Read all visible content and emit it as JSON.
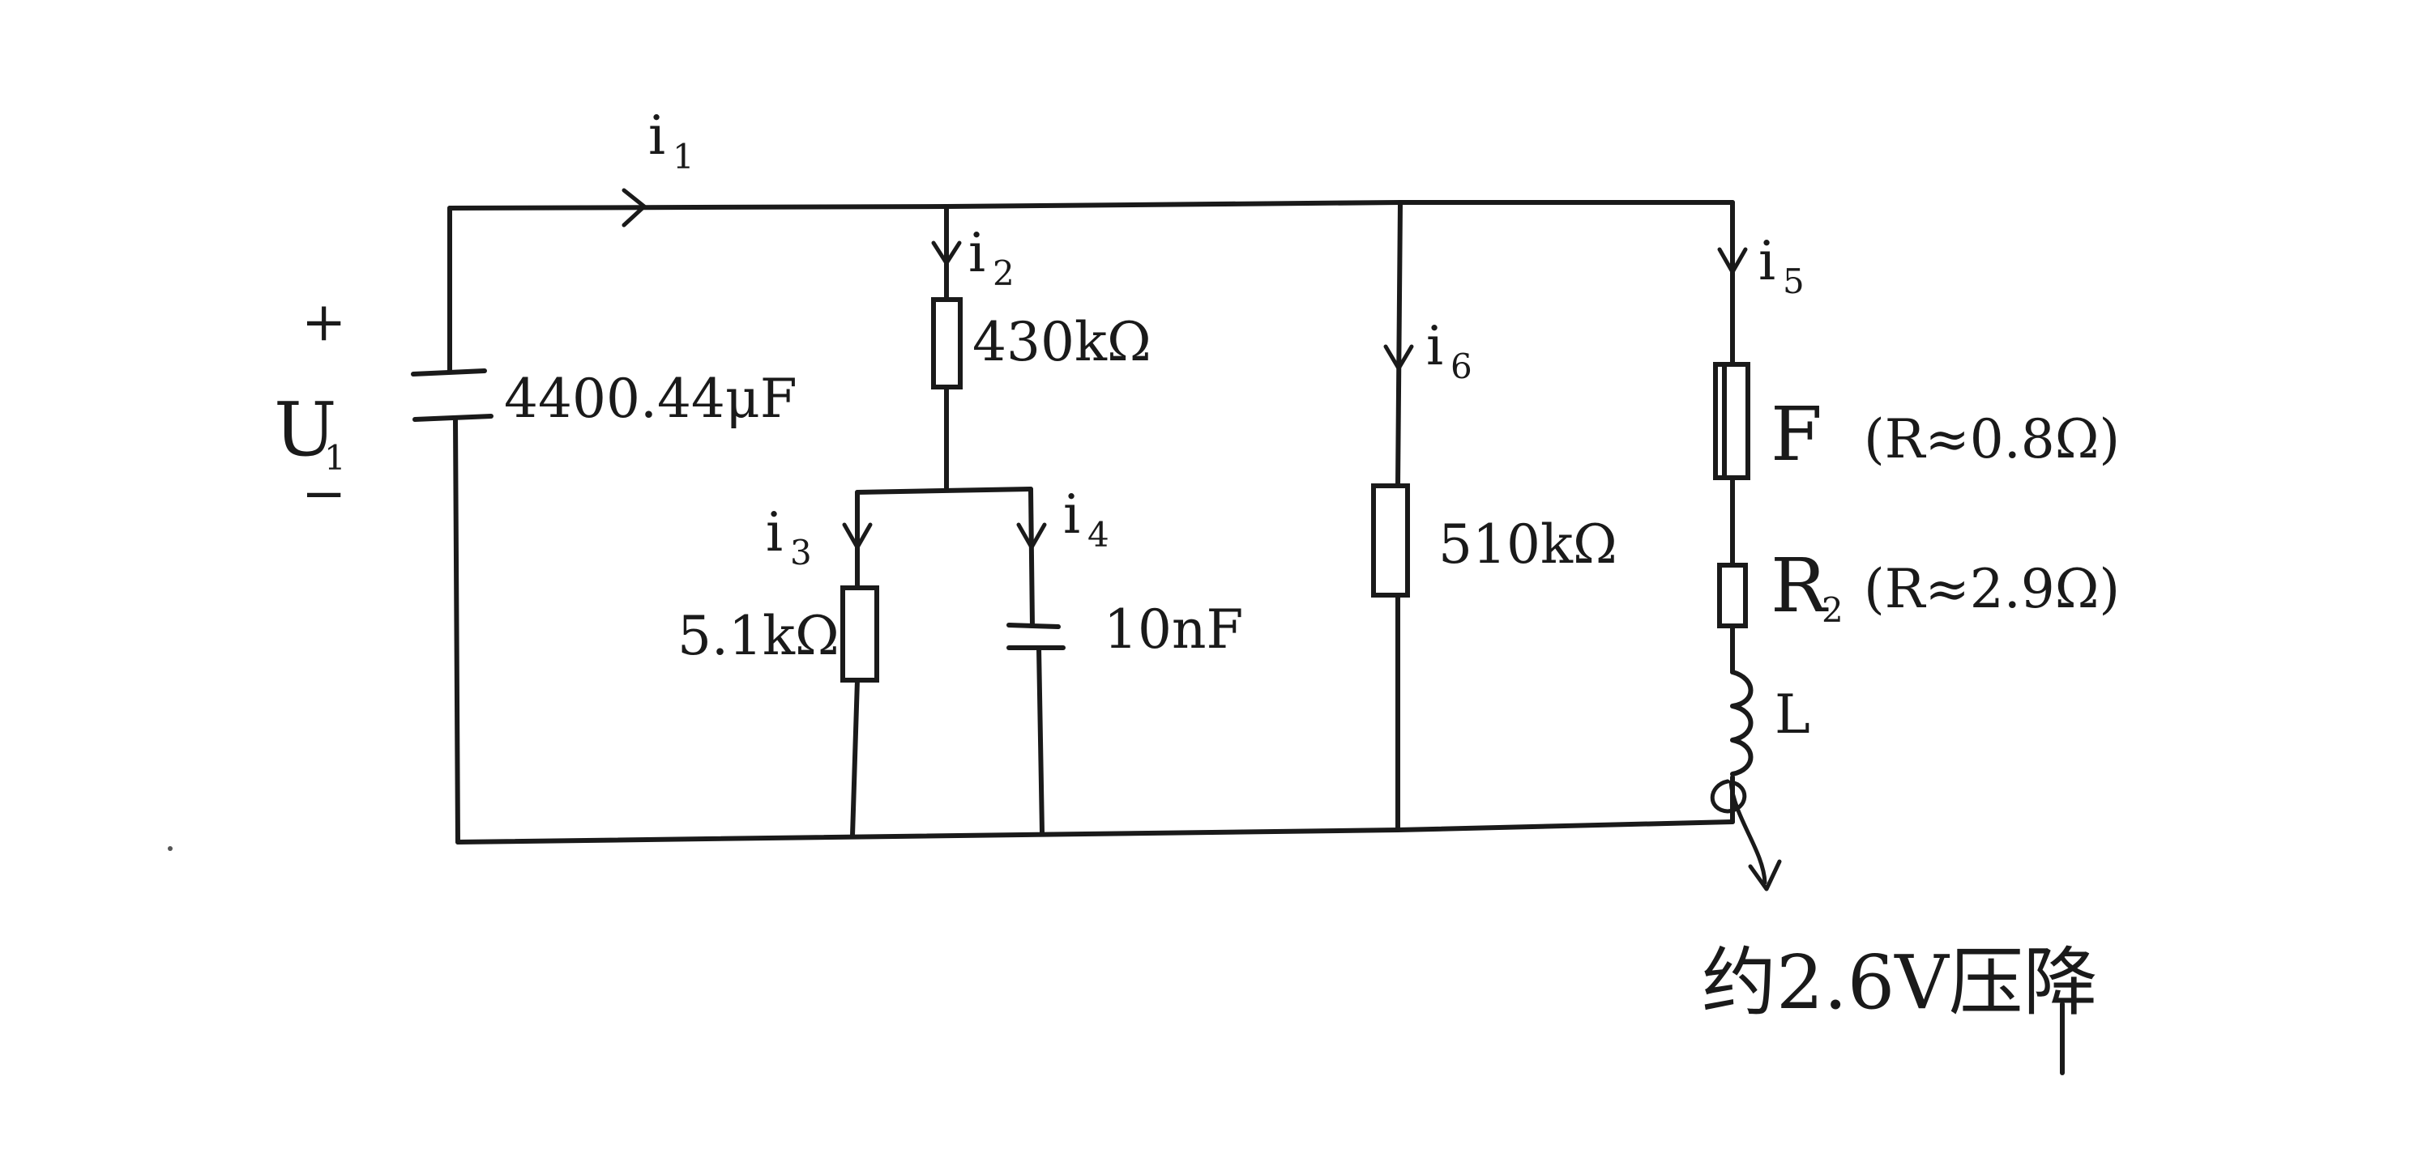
{
  "source": {
    "plus": "+",
    "minus": "−",
    "name": "U",
    "sub": "1"
  },
  "components": {
    "c1_value": "4400.44μF",
    "r_430_value": "430kΩ",
    "r_5k1_value": "5.1kΩ",
    "c_10n_value": "10nF",
    "r_510_value": "510kΩ",
    "fuse_label": "F",
    "fuse_note": "(R≈0.8Ω)",
    "r2_label": "R",
    "r2_sub": "2",
    "r2_note": "(R≈2.9Ω)",
    "inductor_label": "L"
  },
  "currents": {
    "i1": "1",
    "i2": "2",
    "i3": "3",
    "i4": "4",
    "i5": "5",
    "i6": "6"
  },
  "current_symbol": "i",
  "annotation": {
    "drop": "约2.6V压降"
  }
}
